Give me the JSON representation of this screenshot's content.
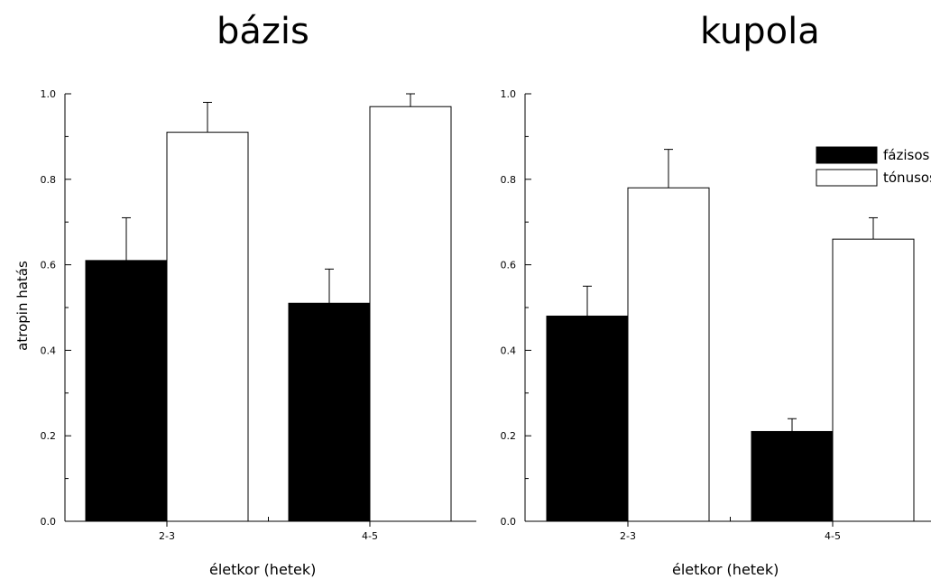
{
  "chart_data": [
    {
      "type": "bar",
      "title": "bázis",
      "xlabel": "életkor (hetek)",
      "ylabel": "atropin hatás",
      "categories": [
        "2-3",
        "4-5"
      ],
      "ylim": [
        0,
        1.0
      ],
      "yticks": [
        "0.0",
        "0.2",
        "0.4",
        "0.6",
        "0.8",
        "1.0"
      ],
      "series": [
        {
          "name": "fázisos",
          "color": "#000000",
          "values": [
            0.61,
            0.51
          ],
          "errors": [
            0.1,
            0.08
          ]
        },
        {
          "name": "tónusos",
          "color": "#ffffff",
          "values": [
            0.91,
            0.97
          ],
          "errors": [
            0.07,
            0.03
          ]
        }
      ],
      "legend": false
    },
    {
      "type": "bar",
      "title": "kupola",
      "xlabel": "életkor (hetek)",
      "ylabel": "",
      "categories": [
        "2-3",
        "4-5"
      ],
      "ylim": [
        0,
        1.0
      ],
      "yticks": [
        "0.0",
        "0.2",
        "0.4",
        "0.6",
        "0.8",
        "1.0"
      ],
      "series": [
        {
          "name": "fázisos",
          "color": "#000000",
          "values": [
            0.48,
            0.21
          ],
          "errors": [
            0.07,
            0.03
          ]
        },
        {
          "name": "tónusos",
          "color": "#ffffff",
          "values": [
            0.78,
            0.66
          ],
          "errors": [
            0.09,
            0.05
          ]
        }
      ],
      "legend": true,
      "legend_position": "top-right"
    }
  ]
}
